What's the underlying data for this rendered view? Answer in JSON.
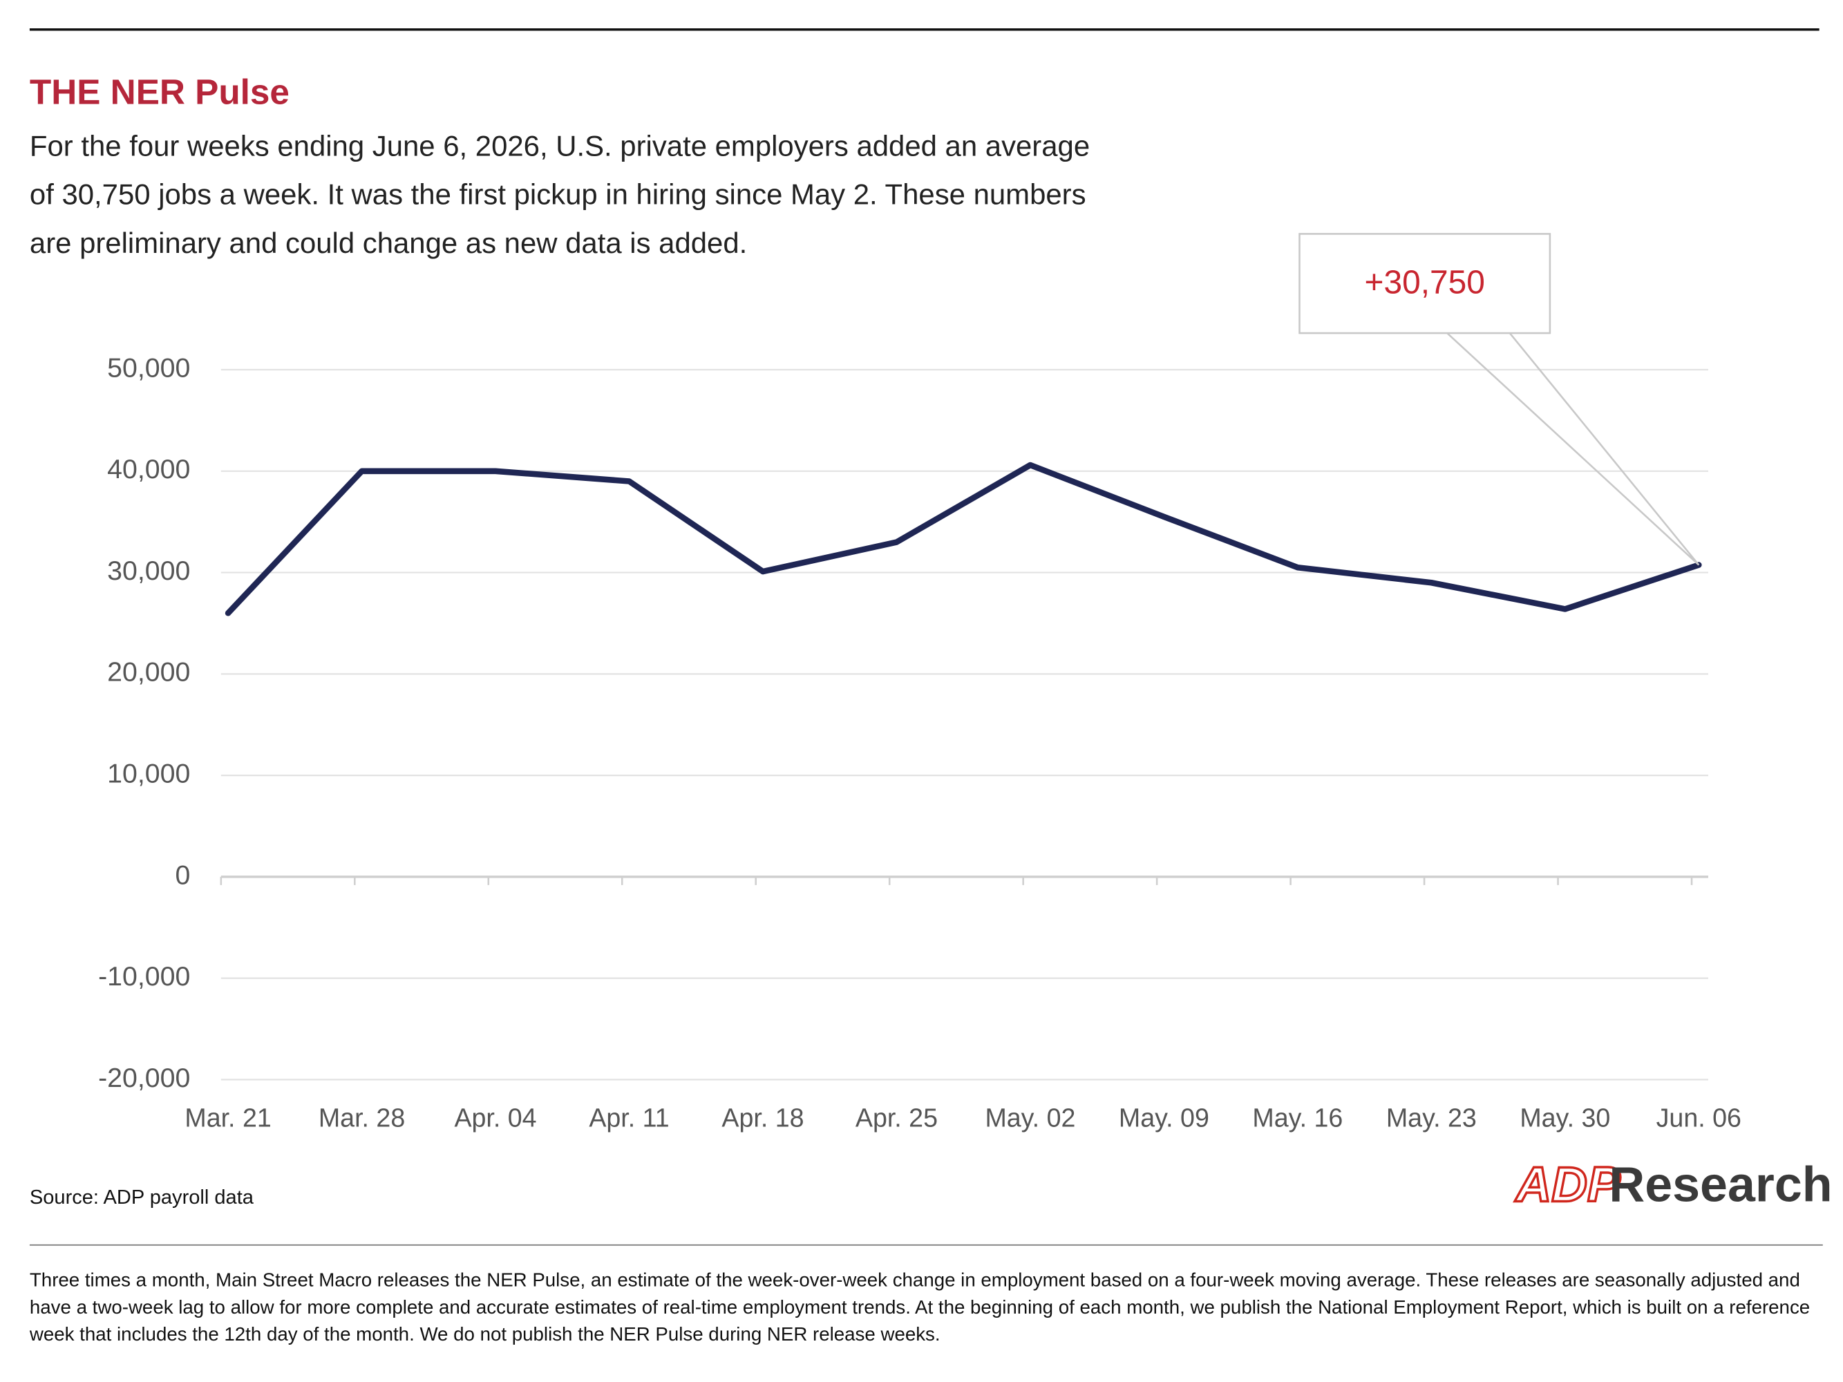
{
  "chart_data": {
    "type": "line",
    "title": "THE NER Pulse",
    "subtitle": "For the four weeks ending June 6, 2026, U.S. private employers added an average of 30,750 jobs a week. It was the first pickup in hiring since May 2. These numbers are preliminary and could change as new data is added.",
    "categories": [
      "Mar. 21",
      "Mar. 28",
      "Apr. 04",
      "Apr. 11",
      "Apr. 18",
      "Apr. 25",
      "May. 02",
      "May. 09",
      "May. 16",
      "May. 23",
      "May. 30",
      "Jun. 06"
    ],
    "values": [
      26000,
      40000,
      40000,
      39000,
      30100,
      33000,
      40600,
      35500,
      30500,
      29000,
      26400,
      30750
    ],
    "color": "#1f2654",
    "annotation": "+30,750",
    "ylim": [
      -20000,
      50000
    ],
    "yticks": [
      {
        "value": -20000,
        "label": "-20,000"
      },
      {
        "value": -10000,
        "label": "-10,000"
      },
      0,
      {
        "value": 10000,
        "label": "10,000"
      },
      {
        "value": 20000,
        "label": "20,000"
      },
      {
        "value": 30000,
        "label": "30,000"
      },
      {
        "value": 40000,
        "label": "40,000"
      },
      {
        "value": 50000,
        "label": "50,000"
      }
    ],
    "grid": true
  },
  "source": "Source: ADP payroll data",
  "logo": {
    "brand": "ADP",
    "name": "Research"
  },
  "footer": "Three times a month, Main Street Macro releases the NER Pulse, an estimate of the week-over-week change in employment based on a four-week moving average. These releases are seasonally adjusted and have a two-week lag to allow for more complete and accurate estimates of real-time employment trends. At the beginning of each month, we publish the National Employment Report, which is built on a reference week that includes the 12th day of the month. We do not publish the NER Pulse during NER release weeks."
}
